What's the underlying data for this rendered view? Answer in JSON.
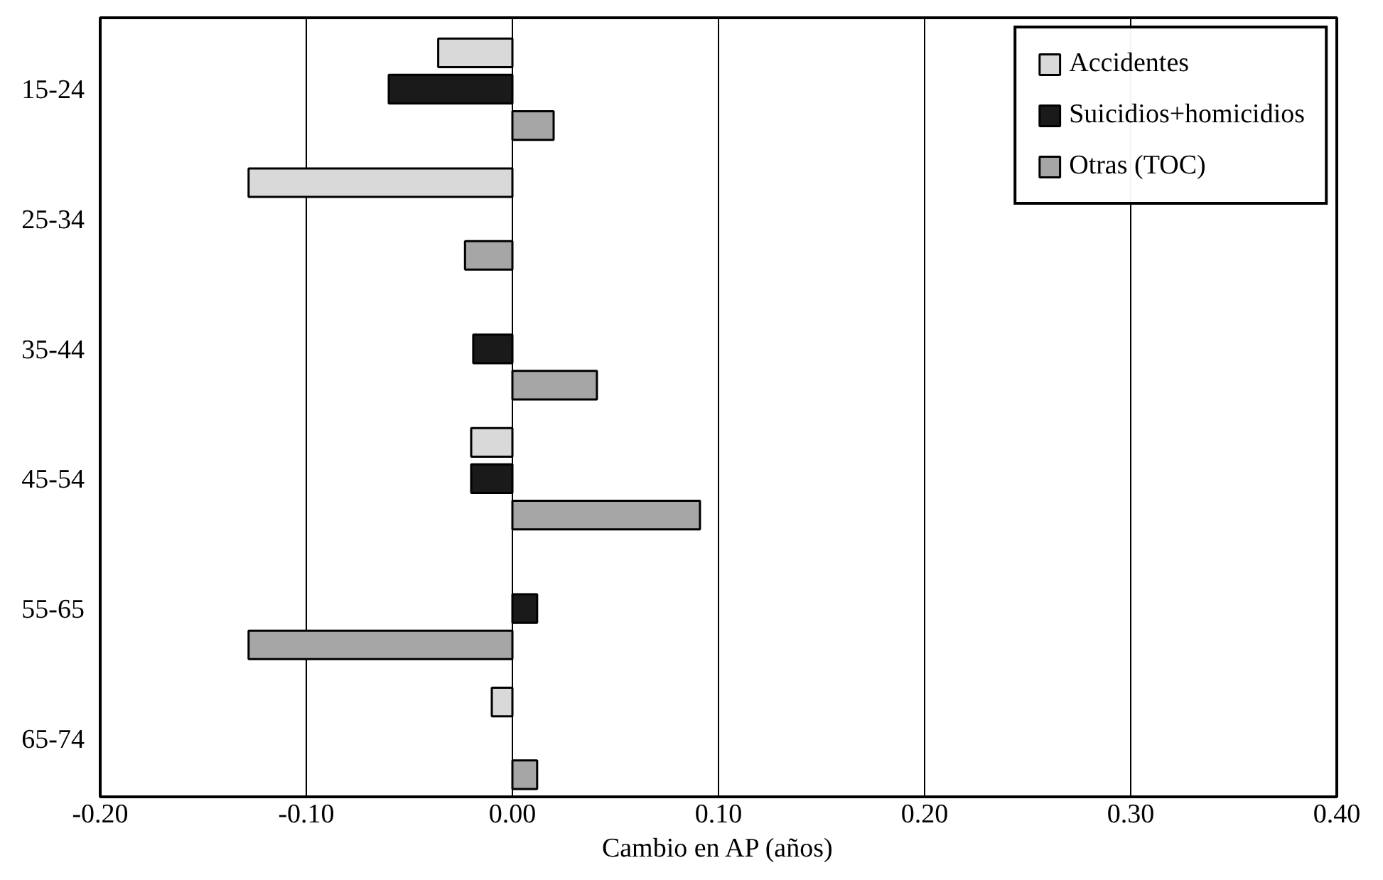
{
  "chart_data": {
    "type": "bar",
    "orientation": "horizontal",
    "xlabel": "Cambio en AP (años)",
    "categories": [
      "15-24",
      "25-34",
      "35-44",
      "45-54",
      "55-65",
      "65-74"
    ],
    "series": [
      {
        "name": "Accidentes",
        "color": "#d9d9d9",
        "values": [
          -0.036,
          -0.128,
          null,
          -0.02,
          null,
          -0.01
        ]
      },
      {
        "name": "Suicidios+homicidios",
        "color": "#1a1a1a",
        "values": [
          -0.06,
          null,
          -0.019,
          -0.02,
          0.012,
          null
        ]
      },
      {
        "name": "Otras (TOC)",
        "color": "#a6a6a6",
        "values": [
          0.02,
          -0.023,
          0.041,
          0.091,
          -0.128,
          0.012
        ]
      }
    ],
    "xlim": [
      -0.2,
      0.4
    ],
    "xticks": [
      {
        "value": -0.2,
        "label": "-0.20"
      },
      {
        "value": -0.1,
        "label": "-0.10"
      },
      {
        "value": 0,
        "label": "0.00"
      },
      {
        "value": 0.1,
        "label": "0.10"
      },
      {
        "value": 0.2,
        "label": "0.20"
      },
      {
        "value": 0.3,
        "label": "0.30"
      },
      {
        "value": 0.4,
        "label": "0.40"
      }
    ],
    "grid": "x",
    "legend": "top right"
  }
}
